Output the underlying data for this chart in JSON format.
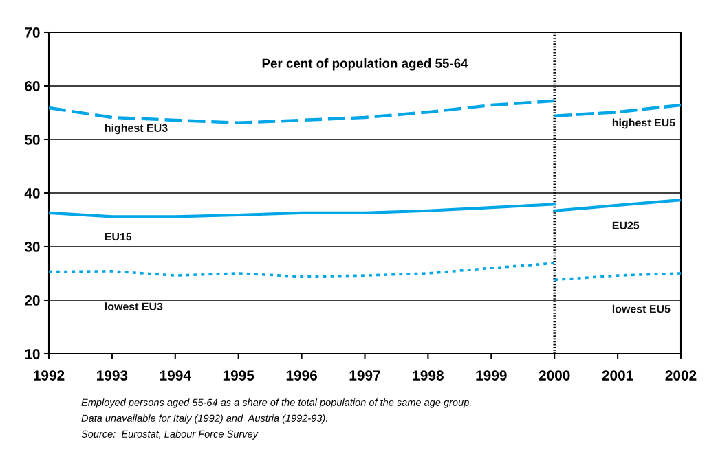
{
  "chart_data": {
    "type": "line",
    "title": "Per cent of population aged 55-64",
    "xlim": [
      1992,
      2002
    ],
    "xticks": [
      1992,
      1993,
      1994,
      1995,
      1996,
      1997,
      1998,
      1999,
      2000,
      2001,
      2002
    ],
    "ylim": [
      10,
      70
    ],
    "yticks": [
      10,
      20,
      30,
      40,
      50,
      60,
      70
    ],
    "grid": "y",
    "legend": false,
    "series": [
      {
        "name": "highest EU3",
        "color": "#00a6e6",
        "line_style": "dashed",
        "x": [
          1992,
          1993,
          1994,
          1995,
          1996,
          1997,
          1998,
          1999,
          2000
        ],
        "values": [
          55.9,
          54.1,
          53.6,
          53.1,
          53.6,
          54.1,
          55.1,
          56.4,
          57.2
        ]
      },
      {
        "name": "EU15",
        "color": "#00a6e6",
        "line_style": "solid",
        "x": [
          1992,
          1993,
          1994,
          1995,
          1996,
          1997,
          1998,
          1999,
          2000
        ],
        "values": [
          36.3,
          35.6,
          35.6,
          35.9,
          36.3,
          36.3,
          36.7,
          37.3,
          37.9
        ]
      },
      {
        "name": "lowest EU3",
        "color": "#00a6e6",
        "line_style": "dotted",
        "x": [
          1992,
          1993,
          1994,
          1995,
          1996,
          1997,
          1998,
          1999,
          2000
        ],
        "values": [
          25.3,
          25.4,
          24.6,
          25.0,
          24.4,
          24.6,
          25.0,
          26.0,
          26.9
        ]
      },
      {
        "name": "highest EU5",
        "color": "#00a6e6",
        "line_style": "dashed",
        "x": [
          2000,
          2001,
          2002
        ],
        "values": [
          54.4,
          55.1,
          56.4
        ]
      },
      {
        "name": "EU25",
        "color": "#00a6e6",
        "line_style": "solid",
        "x": [
          2000,
          2001,
          2002
        ],
        "values": [
          36.7,
          37.7,
          38.7
        ]
      },
      {
        "name": "lowest EU5",
        "color": "#00a6e6",
        "line_style": "dotted",
        "x": [
          2000,
          2001,
          2002
        ],
        "values": [
          23.8,
          24.6,
          25.0
        ]
      }
    ],
    "ref_lines": [
      {
        "axis": "x",
        "value": 2000,
        "color": "#000000",
        "line_style": "dotted"
      }
    ],
    "annotations": [
      "Employed persons aged 55-64 as a share of the total population of the same age group.",
      "Data unavailable for Italy (1992) and  Austria (1992-93).",
      "Source:  Eurostat, Labour Force Survey"
    ]
  }
}
